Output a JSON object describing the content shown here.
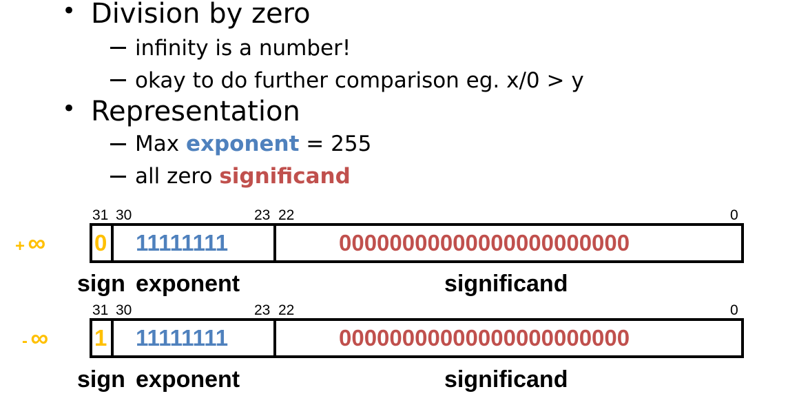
{
  "bullets": [
    {
      "text": "Division by zero",
      "sub": [
        {
          "text": "infinity is a number!"
        },
        {
          "text": "okay to do further comparison  eg. x/0 > y"
        }
      ]
    },
    {
      "text": "Representation",
      "sub": [
        {
          "pre": "Max ",
          "hl": "exponent",
          "post": " = 255"
        },
        {
          "pre": "all zero ",
          "hl": "significand",
          "post": ""
        }
      ]
    }
  ],
  "diagrams": [
    {
      "sign_label": "+",
      "infinity_symbol": "∞",
      "bits": {
        "b31": "31",
        "b30": "30",
        "b23": "23",
        "b22": "22",
        "b0": "0"
      },
      "sign_value": "0",
      "exponent_value": "11111111",
      "significand_value": "00000000000000000000000",
      "captions": {
        "sign": "sign",
        "exponent": "exponent",
        "significand": "significand"
      }
    },
    {
      "sign_label": "-",
      "infinity_symbol": "∞",
      "bits": {
        "b31": "31",
        "b30": "30",
        "b23": "23",
        "b22": "22",
        "b0": "0"
      },
      "sign_value": "1",
      "exponent_value": "11111111",
      "significand_value": "00000000000000000000000",
      "captions": {
        "sign": "sign",
        "exponent": "exponent",
        "significand": "significand"
      }
    }
  ],
  "colors": {
    "sign": "#ffc000",
    "exponent": "#4f81bd",
    "significand": "#c0504d"
  }
}
